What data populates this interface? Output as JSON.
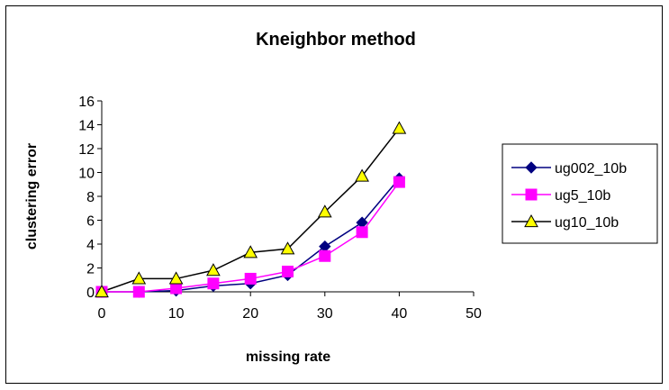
{
  "chart_data": {
    "type": "line",
    "title": "Kneighbor method",
    "xlabel": "missing rate",
    "ylabel": "clustering error",
    "xlim": [
      0,
      50
    ],
    "ylim": [
      0,
      16
    ],
    "xticks": [
      0,
      10,
      20,
      30,
      40,
      50
    ],
    "yticks": [
      0,
      2,
      4,
      6,
      8,
      10,
      12,
      14,
      16
    ],
    "grid": false,
    "legend_position": "right",
    "x": [
      0,
      5,
      10,
      15,
      20,
      25,
      30,
      35,
      40
    ],
    "series": [
      {
        "name": "ug002_10b",
        "color": "#000080",
        "marker": "diamond",
        "values": [
          0,
          0,
          0.1,
          0.5,
          0.7,
          1.4,
          3.8,
          5.8,
          9.5
        ]
      },
      {
        "name": "ug5_10b",
        "color": "#ff00ff",
        "marker": "square",
        "values": [
          0,
          0,
          0.3,
          0.7,
          1.1,
          1.7,
          3.0,
          5.0,
          9.2
        ]
      },
      {
        "name": "ug10_10b",
        "color": "#000000",
        "marker_fill": "#ffff00",
        "marker": "triangle",
        "values": [
          0,
          1.1,
          1.1,
          1.8,
          3.3,
          3.6,
          6.7,
          9.7,
          13.7
        ]
      }
    ]
  }
}
